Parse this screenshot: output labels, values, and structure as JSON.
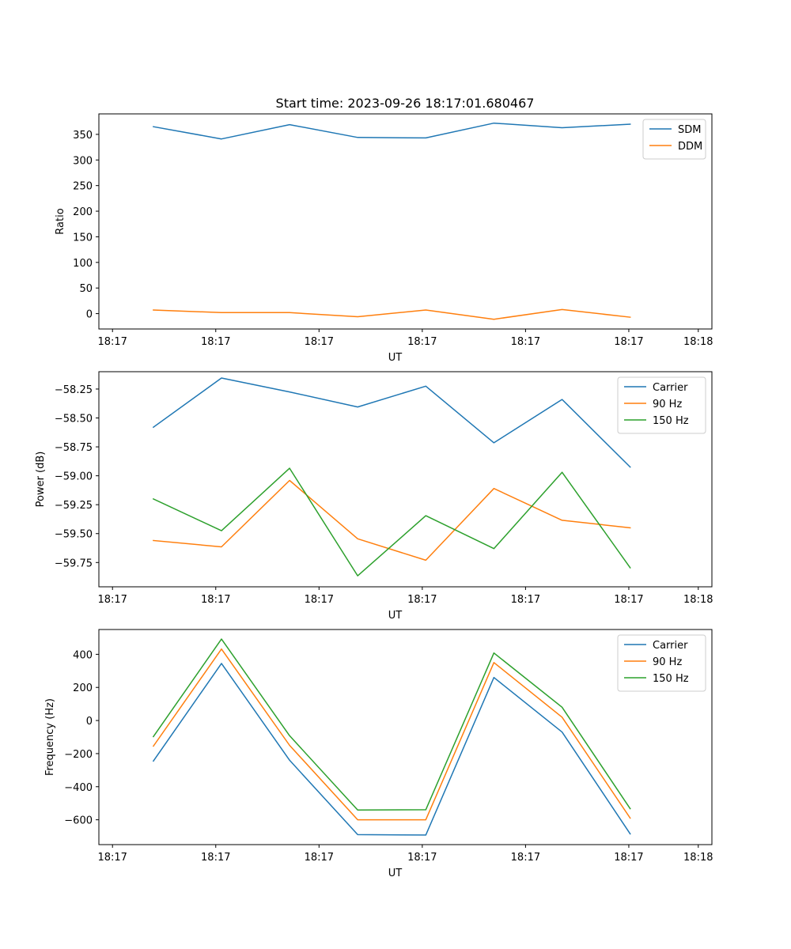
{
  "figure_title": "Start time: 2023-09-26 18:17:01.680467",
  "colors": {
    "blue": "#1f77b4",
    "orange": "#ff7f0e",
    "green": "#2ca02c"
  },
  "chart_data": [
    {
      "type": "line",
      "title": "Start time: 2023-09-26 18:17:01.680467",
      "xlabel": "UT",
      "ylabel": "Ratio",
      "x": [
        1,
        2,
        3,
        4,
        5,
        6,
        7,
        8
      ],
      "xlim": [
        0.2,
        9.2
      ],
      "xticks": [
        0.4,
        1.916,
        3.432,
        4.948,
        6.464,
        7.98,
        9.0
      ],
      "xtick_labels": [
        "18:17",
        "18:17",
        "18:17",
        "18:17",
        "18:17",
        "18:17",
        "18:18"
      ],
      "ylim": [
        -30,
        390
      ],
      "yticks": [
        0,
        50,
        100,
        150,
        200,
        250,
        300,
        350
      ],
      "ytick_labels": [
        "0",
        "50",
        "100",
        "150",
        "200",
        "250",
        "300",
        "350"
      ],
      "legend": "top-right",
      "series": [
        {
          "name": "SDM",
          "color": "#1f77b4",
          "values": [
            365,
            341,
            369,
            344,
            343,
            372,
            363,
            370
          ]
        },
        {
          "name": "DDM",
          "color": "#ff7f0e",
          "values": [
            7,
            2,
            2,
            -6,
            7,
            -11,
            8,
            -7
          ]
        }
      ]
    },
    {
      "type": "line",
      "title": "",
      "xlabel": "UT",
      "ylabel": "Power (dB)",
      "x": [
        1,
        2,
        3,
        4,
        5,
        6,
        7,
        8
      ],
      "xlim": [
        0.2,
        9.2
      ],
      "xticks": [
        0.4,
        1.916,
        3.432,
        4.948,
        6.464,
        7.98,
        9.0
      ],
      "xtick_labels": [
        "18:17",
        "18:17",
        "18:17",
        "18:17",
        "18:17",
        "18:17",
        "18:18"
      ],
      "ylim": [
        -59.96,
        -58.1
      ],
      "yticks": [
        -59.75,
        -59.5,
        -59.25,
        -59.0,
        -58.75,
        -58.5,
        -58.25
      ],
      "ytick_labels": [
        "−59.75",
        "−59.50",
        "−59.25",
        "−59.00",
        "−58.75",
        "−58.50",
        "−58.25"
      ],
      "legend": "top-right",
      "series": [
        {
          "name": "Carrier",
          "color": "#1f77b4",
          "values": [
            -58.58,
            -58.155,
            -58.275,
            -58.405,
            -58.225,
            -58.715,
            -58.34,
            -58.925
          ]
        },
        {
          "name": "90 Hz",
          "color": "#ff7f0e",
          "values": [
            -59.56,
            -59.615,
            -59.04,
            -59.545,
            -59.73,
            -59.11,
            -59.385,
            -59.45
          ]
        },
        {
          "name": "150 Hz",
          "color": "#2ca02c",
          "values": [
            -59.2,
            -59.475,
            -58.935,
            -59.865,
            -59.345,
            -59.63,
            -58.97,
            -59.795
          ]
        }
      ]
    },
    {
      "type": "line",
      "title": "",
      "xlabel": "UT",
      "ylabel": "Frequency (Hz)",
      "x": [
        1,
        2,
        3,
        4,
        5,
        6,
        7,
        8
      ],
      "xlim": [
        0.2,
        9.2
      ],
      "xticks": [
        0.4,
        1.916,
        3.432,
        4.948,
        6.464,
        7.98,
        9.0
      ],
      "xtick_labels": [
        "18:17",
        "18:17",
        "18:17",
        "18:17",
        "18:17",
        "18:17",
        "18:18"
      ],
      "ylim": [
        -750,
        550
      ],
      "yticks": [
        -600,
        -400,
        -200,
        0,
        200,
        400
      ],
      "ytick_labels": [
        "−600",
        "−400",
        "−200",
        "0",
        "200",
        "400"
      ],
      "legend": "top-right",
      "series": [
        {
          "name": "Carrier",
          "color": "#1f77b4",
          "values": [
            -245,
            345,
            -240,
            -690,
            -692,
            260,
            -70,
            -685
          ]
        },
        {
          "name": "90 Hz",
          "color": "#ff7f0e",
          "values": [
            -155,
            432,
            -150,
            -600,
            -600,
            350,
            20,
            -590
          ]
        },
        {
          "name": "150 Hz",
          "color": "#2ca02c",
          "values": [
            -97,
            492,
            -92,
            -541,
            -539,
            408,
            80,
            -533
          ]
        }
      ]
    }
  ]
}
